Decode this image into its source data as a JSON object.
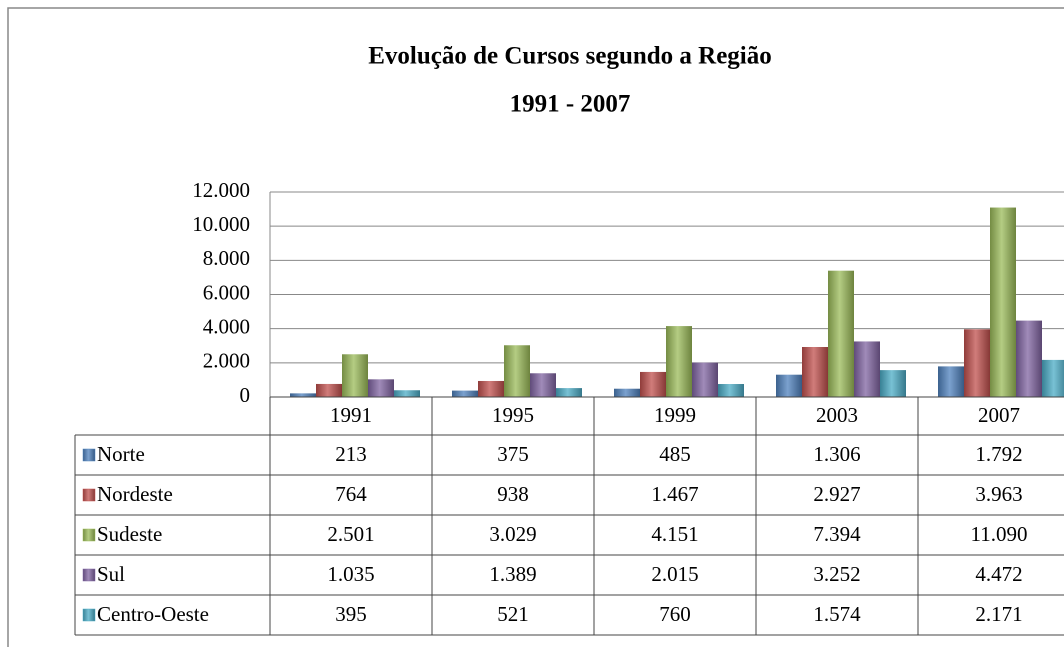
{
  "chart_data": {
    "type": "bar",
    "title": "Evolução de Cursos segundo a Região",
    "subtitle": "1991 - 2007",
    "categories": [
      "1991",
      "1995",
      "1999",
      "2003",
      "2007"
    ],
    "series": [
      {
        "name": "Norte",
        "color": "#4f81bd",
        "values": [
          213,
          375,
          485,
          1306,
          1792
        ],
        "value_labels": [
          "213",
          "375",
          "485",
          "1.306",
          "1.792"
        ]
      },
      {
        "name": "Nordeste",
        "color": "#c0504d",
        "values": [
          764,
          938,
          1467,
          2927,
          3963
        ],
        "value_labels": [
          "764",
          "938",
          "1.467",
          "2.927",
          "3.963"
        ]
      },
      {
        "name": "Sudeste",
        "color": "#9bbb59",
        "values": [
          2501,
          3029,
          4151,
          7394,
          11090
        ],
        "value_labels": [
          "2.501",
          "3.029",
          "4.151",
          "7.394",
          "11.090"
        ]
      },
      {
        "name": "Sul",
        "color": "#8064a2",
        "values": [
          1035,
          1389,
          2015,
          3252,
          4472
        ],
        "value_labels": [
          "1.035",
          "1.389",
          "2.015",
          "3.252",
          "4.472"
        ]
      },
      {
        "name": "Centro-Oeste",
        "color": "#4bacc6",
        "values": [
          395,
          521,
          760,
          1574,
          2171
        ],
        "value_labels": [
          "395",
          "521",
          "760",
          "1.574",
          "2.171"
        ]
      }
    ],
    "ylim": [
      0,
      12000
    ],
    "yticks": [
      0,
      {
        "value": 2000,
        "label": "2.000"
      },
      {
        "value": 4000,
        "label": "4.000"
      },
      {
        "value": 6000,
        "label": "6.000"
      },
      {
        "value": 8000,
        "label": "8.000"
      },
      {
        "value": 10000,
        "label": "10.000"
      },
      {
        "value": 12000,
        "label": "12.000"
      }
    ],
    "grid": true
  }
}
